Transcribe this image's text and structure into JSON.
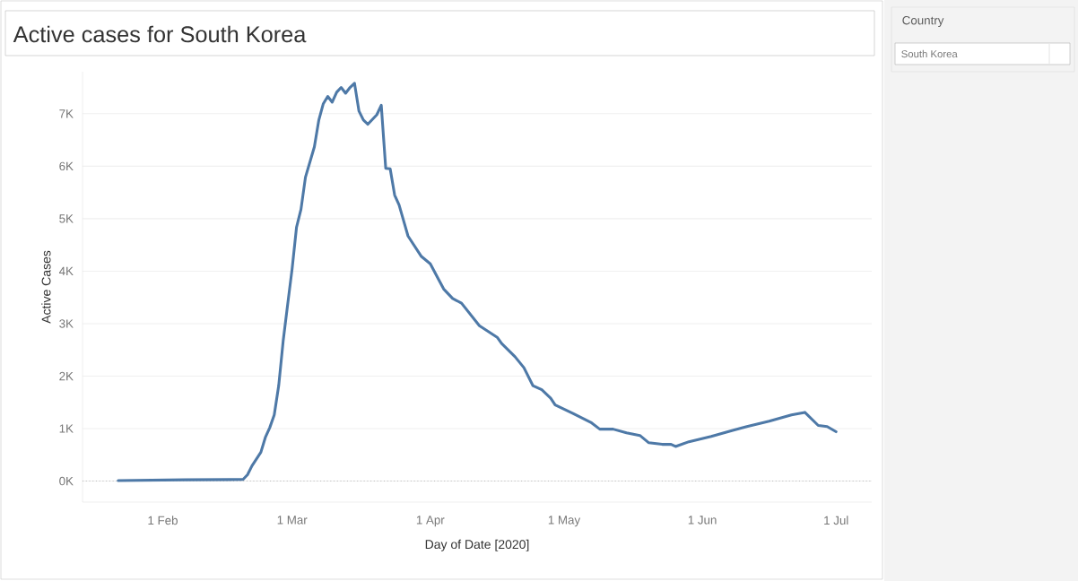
{
  "chart_data": {
    "type": "line",
    "title": "Active cases for South Korea",
    "xlabel": "Day of Date [2020]",
    "ylabel": "Active Cases",
    "annotations": [
      "Country",
      "South Korea"
    ],
    "x": [
      "2020-01-22",
      "2020-02-06",
      "2020-02-19",
      "2020-02-20",
      "2020-02-21",
      "2020-02-23",
      "2020-02-24",
      "2020-02-25",
      "2020-02-26",
      "2020-02-27",
      "2020-02-28",
      "2020-02-29",
      "2020-03-01",
      "2020-03-02",
      "2020-03-03",
      "2020-03-04",
      "2020-03-06",
      "2020-03-07",
      "2020-03-08",
      "2020-03-09",
      "2020-03-10",
      "2020-03-11",
      "2020-03-12",
      "2020-03-13",
      "2020-03-14",
      "2020-03-15",
      "2020-03-16",
      "2020-03-17",
      "2020-03-18",
      "2020-03-20",
      "2020-03-21",
      "2020-03-22",
      "2020-03-23",
      "2020-03-24",
      "2020-03-25",
      "2020-03-27",
      "2020-03-30",
      "2020-04-01",
      "2020-04-03",
      "2020-04-04",
      "2020-04-06",
      "2020-04-08",
      "2020-04-12",
      "2020-04-16",
      "2020-04-17",
      "2020-04-20",
      "2020-04-22",
      "2020-04-24",
      "2020-04-26",
      "2020-04-28",
      "2020-04-29",
      "2020-05-03",
      "2020-05-07",
      "2020-05-09",
      "2020-05-12",
      "2020-05-15",
      "2020-05-18",
      "2020-05-20",
      "2020-05-23",
      "2020-05-25",
      "2020-05-26",
      "2020-05-29",
      "2020-06-03",
      "2020-06-08",
      "2020-06-11",
      "2020-06-16",
      "2020-06-21",
      "2020-06-24",
      "2020-06-27",
      "2020-06-29",
      "2020-07-01"
    ],
    "values": [
      10,
      25,
      30,
      120,
      290,
      550,
      830,
      1020,
      1260,
      1820,
      2670,
      3360,
      4040,
      4840,
      5180,
      5790,
      6370,
      6880,
      7190,
      7330,
      7220,
      7410,
      7500,
      7390,
      7500,
      7580,
      7050,
      6880,
      6800,
      6980,
      7160,
      5960,
      5950,
      5450,
      5260,
      4670,
      4280,
      4140,
      3820,
      3660,
      3480,
      3390,
      2960,
      2740,
      2620,
      2370,
      2160,
      1820,
      1740,
      1580,
      1450,
      1290,
      1120,
      990,
      990,
      920,
      870,
      730,
      700,
      700,
      660,
      750,
      850,
      970,
      1040,
      1140,
      1260,
      1310,
      1060,
      1040,
      940
    ],
    "color": "#4e79a7",
    "line_style": "solid",
    "grid": "y",
    "xlim": [
      "2020-01-14",
      "2020-07-09"
    ],
    "ylim": [
      -400,
      7800
    ],
    "xticks": [
      {
        "value": "2020-02-01",
        "label": "1 Feb"
      },
      {
        "value": "2020-03-01",
        "label": "1 Mar"
      },
      {
        "value": "2020-04-01",
        "label": "1 Apr"
      },
      {
        "value": "2020-05-01",
        "label": "1 May"
      },
      {
        "value": "2020-06-01",
        "label": "1 Jun"
      },
      {
        "value": "2020-07-01",
        "label": "1 Jul"
      }
    ],
    "yticks": [
      {
        "value": 0,
        "label": "0K"
      },
      {
        "value": 1000,
        "label": "1K"
      },
      {
        "value": 2000,
        "label": "2K"
      },
      {
        "value": 3000,
        "label": "3K"
      },
      {
        "value": 4000,
        "label": "4K"
      },
      {
        "value": 5000,
        "label": "5K"
      },
      {
        "value": 6000,
        "label": "6K"
      },
      {
        "value": 7000,
        "label": "7K"
      }
    ],
    "ref_lines": [
      {
        "axis": "y",
        "value": 0,
        "color": "#bbbbbb",
        "line_style": "dotted"
      }
    ]
  }
}
